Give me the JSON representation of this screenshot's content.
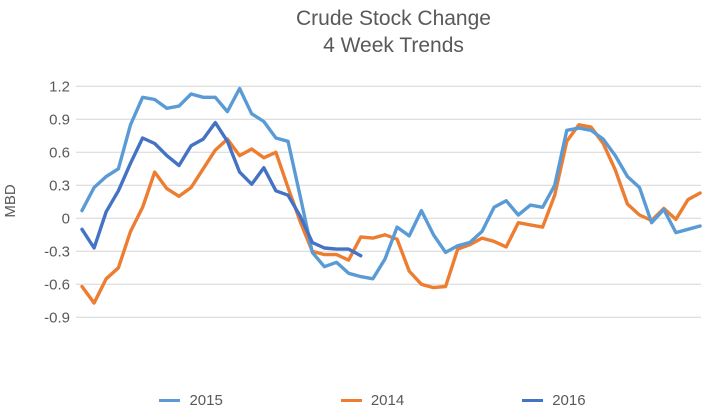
{
  "title": {
    "line1": "Crude Stock Change",
    "line2": "4 Week Trends"
  },
  "colors": {
    "title_text": "#595959",
    "axis_text": "#595959",
    "gridline": "#d6d6d6",
    "series_2015": "#5b9bd5",
    "series_2014": "#ed7d31",
    "series_2016": "#4472c4"
  },
  "chart_data": {
    "type": "line",
    "title": "Crude Stock Change 4 Week Trends",
    "xlabel": "",
    "ylabel": "MBD",
    "ylim": [
      -0.9,
      1.2
    ],
    "yticks": [
      1.2,
      0.9,
      0.6,
      0.3,
      0,
      -0.3,
      -0.6,
      -0.9
    ],
    "ytick_labels": [
      "1.2",
      "0.9",
      "0.6",
      "0.3",
      "0",
      "-0.3",
      "-0.6",
      "-0.9"
    ],
    "x_unit": "week",
    "n_weeks": 52,
    "grid": "horizontal-only",
    "x_axis_labels": "none",
    "legend_position": "bottom",
    "series": [
      {
        "name": "2015",
        "color": "#5b9bd5",
        "values": [
          0.07,
          0.28,
          0.38,
          0.45,
          0.85,
          1.1,
          1.08,
          1.0,
          1.02,
          1.13,
          1.1,
          1.1,
          0.97,
          1.18,
          0.95,
          0.88,
          0.73,
          0.7,
          0.2,
          -0.31,
          -0.44,
          -0.4,
          -0.5,
          -0.53,
          -0.55,
          -0.37,
          -0.08,
          -0.16,
          0.07,
          -0.15,
          -0.31,
          -0.25,
          -0.22,
          -0.12,
          0.1,
          0.16,
          0.03,
          0.12,
          0.1,
          0.3,
          0.8,
          0.82,
          0.8,
          0.72,
          0.57,
          0.38,
          0.28,
          -0.04,
          0.08,
          -0.13,
          -0.1,
          -0.07
        ]
      },
      {
        "name": "2014",
        "color": "#ed7d31",
        "values": [
          -0.62,
          -0.77,
          -0.55,
          -0.45,
          -0.12,
          0.1,
          0.42,
          0.27,
          0.2,
          0.28,
          0.45,
          0.62,
          0.72,
          0.57,
          0.63,
          0.55,
          0.6,
          0.28,
          -0.03,
          -0.3,
          -0.33,
          -0.33,
          -0.38,
          -0.17,
          -0.18,
          -0.15,
          -0.19,
          -0.48,
          -0.6,
          -0.63,
          -0.62,
          -0.28,
          -0.24,
          -0.18,
          -0.21,
          -0.26,
          -0.04,
          -0.06,
          -0.08,
          0.21,
          0.7,
          0.85,
          0.83,
          0.68,
          0.44,
          0.13,
          0.03,
          -0.02,
          0.09,
          -0.01,
          0.17,
          0.23
        ]
      },
      {
        "name": "2016",
        "color": "#4472c4",
        "values": [
          -0.1,
          -0.27,
          0.06,
          0.25,
          0.5,
          0.73,
          0.68,
          0.57,
          0.48,
          0.66,
          0.72,
          0.87,
          0.7,
          0.42,
          0.31,
          0.46,
          0.25,
          0.21,
          0.02,
          -0.22,
          -0.27,
          -0.28,
          -0.28,
          -0.34
        ]
      }
    ]
  }
}
